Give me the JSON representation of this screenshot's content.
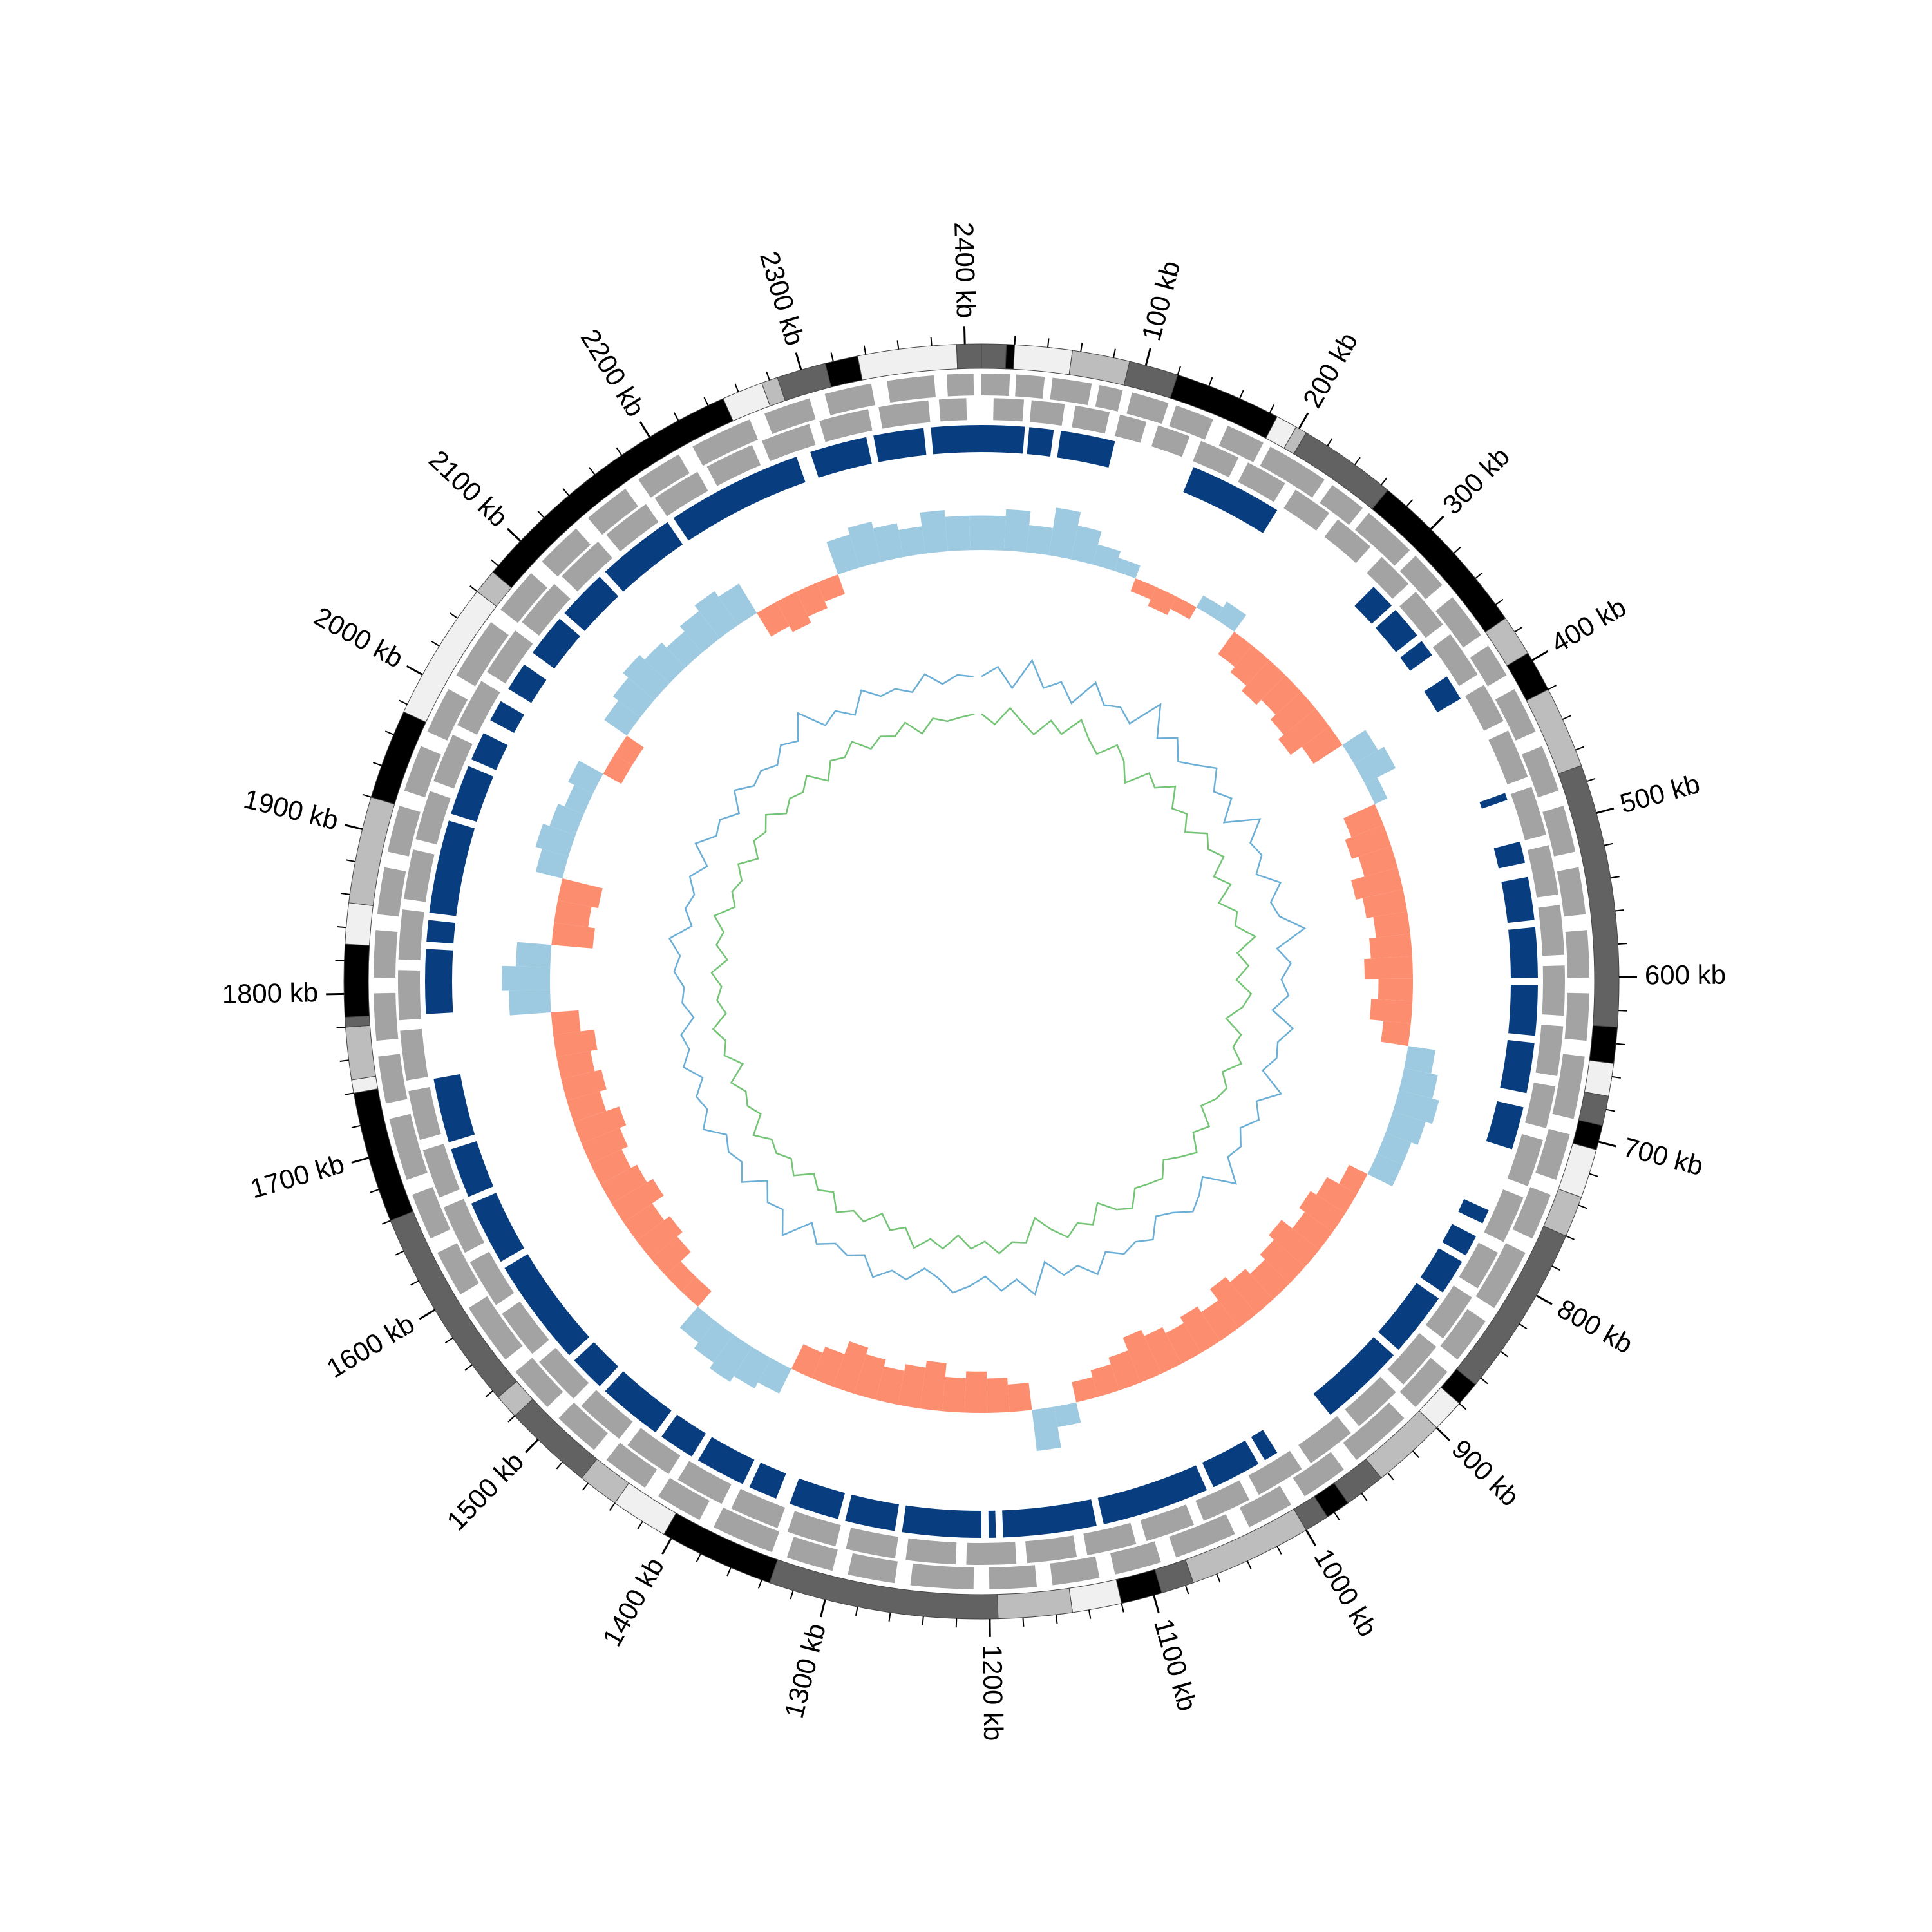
{
  "chart_data": {
    "type": "circos",
    "xlim": [
      0,
      2410
    ],
    "xticks": [
      {
        "value": 100,
        "label": "100 kb"
      },
      {
        "value": 200,
        "label": "200 kb"
      },
      {
        "value": 300,
        "label": "300 kb"
      },
      {
        "value": 400,
        "label": "400 kb"
      },
      {
        "value": 500,
        "label": "500 kb"
      },
      {
        "value": 600,
        "label": "600 kb"
      },
      {
        "value": 700,
        "label": "700 kb"
      },
      {
        "value": 800,
        "label": "800 kb"
      },
      {
        "value": 900,
        "label": "900 kb"
      },
      {
        "value": 1000,
        "label": "1000 kb"
      },
      {
        "value": 1100,
        "label": "1100 kb"
      },
      {
        "value": 1200,
        "label": "1200 kb"
      },
      {
        "value": 1300,
        "label": "1300 kb"
      },
      {
        "value": 1400,
        "label": "1400 kb"
      },
      {
        "value": 1500,
        "label": "1500 kb"
      },
      {
        "value": 1600,
        "label": "1600 kb"
      },
      {
        "value": 1700,
        "label": "1700 kb"
      },
      {
        "value": 1800,
        "label": "1800 kb"
      },
      {
        "value": 1900,
        "label": "1900 kb"
      },
      {
        "value": 2000,
        "label": "2000 kb"
      },
      {
        "value": 2100,
        "label": "2100 kb"
      },
      {
        "value": 2200,
        "label": "2200 kb"
      },
      {
        "value": 2300,
        "label": "2300 kb"
      },
      {
        "value": 2400,
        "label": "2400 kb"
      }
    ],
    "xticks_minor": [
      20,
      40,
      60,
      80,
      120,
      140,
      160,
      180,
      220,
      240,
      260,
      280,
      320,
      340,
      360,
      380,
      420,
      440,
      460,
      480,
      520,
      540,
      560,
      580,
      620,
      640,
      660,
      680,
      720,
      740,
      760,
      780,
      820,
      840,
      860,
      880,
      920,
      940,
      960,
      980,
      1020,
      1040,
      1060,
      1080,
      1120,
      1140,
      1160,
      1180,
      1220,
      1240,
      1260,
      1280,
      1320,
      1340,
      1360,
      1380,
      1420,
      1440,
      1460,
      1480,
      1520,
      1540,
      1560,
      1580,
      1620,
      1640,
      1660,
      1680,
      1720,
      1740,
      1760,
      1780,
      1820,
      1840,
      1860,
      1880,
      1920,
      1940,
      1960,
      1980,
      2020,
      2040,
      2060,
      2080,
      2120,
      2140,
      2160,
      2180,
      2220,
      2240,
      2260,
      2280,
      2320,
      2340,
      2360,
      2380
    ],
    "ideogram": {
      "bounds": [
        0,
        15,
        20,
        55,
        90,
        120,
        185,
        198,
        205,
        265,
        370,
        395,
        420,
        470,
        630,
        652,
        672,
        690,
        705,
        735,
        760,
        865,
        880,
        900,
        945,
        970,
        985,
        1000,
        1075,
        1095,
        1120,
        1150,
        1195,
        1335,
        1405,
        1440,
        1465,
        1520,
        1535,
        1660,
        1740,
        1748,
        1780,
        1786,
        1830,
        1855,
        1920,
        1975,
        2060,
        2075,
        2250,
        2275,
        2285,
        2315,
        2335,
        2395,
        2410
      ],
      "colors": [
        "#626262",
        "#000000",
        "#f0f0f0",
        "#bdbdbd",
        "#626262",
        "#000000",
        "#f0f0f0",
        "#bdbdbd",
        "#626262",
        "#000000",
        "#bdbdbd",
        "#000000",
        "#bdbdbd",
        "#626262",
        "#000000",
        "#f0f0f0",
        "#626262",
        "#000000",
        "#f0f0f0",
        "#bdbdbd",
        "#626262",
        "#000000",
        "#f0f0f0",
        "#bdbdbd",
        "#626262",
        "#000000",
        "#626262",
        "#bdbdbd",
        "#626262",
        "#000000",
        "#f0f0f0",
        "#bdbdbd",
        "#626262",
        "#000000",
        "#f0f0f0",
        "#bdbdbd",
        "#626262",
        "#bdbdbd",
        "#626262",
        "#000000",
        "#f0f0f0",
        "#bdbdbd",
        "#626262",
        "#000000",
        "#f0f0f0",
        "#bdbdbd",
        "#000000",
        "#f0f0f0",
        "#bdbdbd",
        "#000000",
        "#f0f0f0",
        "#bdbdbd",
        "#626262",
        "#000000",
        "#f0f0f0",
        "#626262"
      ]
    },
    "genes_plus": {
      "color": "#a3a3a3",
      "starts": [
        0,
        22,
        45,
        75,
        96,
        125,
        160,
        190,
        236,
        265,
        305,
        340,
        378,
        410,
        450,
        490,
        530,
        570,
        610,
        650,
        700,
        740,
        780,
        830,
        870,
        910,
        960,
        1000,
        1040,
        1090,
        1130,
        1170,
        1210,
        1260,
        1300,
        1340,
        1390,
        1430,
        1470,
        1510,
        1550,
        1600,
        1640,
        1680,
        1730,
        1770,
        1810,
        1850,
        1890,
        1930,
        1970,
        2010,
        2060,
        2100,
        2140,
        2180,
        2220,
        2270,
        2310,
        2350,
        2388
      ],
      "ends": [
        18,
        40,
        70,
        90,
        120,
        150,
        185,
        230,
        260,
        300,
        330,
        370,
        400,
        440,
        480,
        520,
        560,
        600,
        640,
        690,
        730,
        770,
        820,
        860,
        900,
        950,
        990,
        1030,
        1080,
        1120,
        1160,
        1200,
        1250,
        1290,
        1330,
        1380,
        1420,
        1460,
        1500,
        1540,
        1590,
        1630,
        1670,
        1720,
        1760,
        1800,
        1840,
        1880,
        1920,
        1960,
        2000,
        2050,
        2090,
        2130,
        2170,
        2210,
        2260,
        2300,
        2340,
        2380,
        2405
      ]
    },
    "genes_minus": {
      "color": "#a3a3a3",
      "starts": [
        8,
        33,
        62,
        92,
        118,
        148,
        182,
        218,
        252,
        290,
        322,
        358,
        398,
        432,
        472,
        512,
        552,
        592,
        632,
        672,
        708,
        748,
        788,
        822,
        862,
        902,
        942,
        982,
        1022,
        1062,
        1102,
        1142,
        1182,
        1222,
        1262,
        1302,
        1342,
        1382,
        1422,
        1462,
        1502,
        1542,
        1582,
        1622,
        1662,
        1702,
        1742,
        1782,
        1822,
        1862,
        1902,
        1942,
        1982,
        2022,
        2062,
        2102,
        2142,
        2182,
        2222,
        2262,
        2302,
        2342,
        2382
      ],
      "ends": [
        28,
        55,
        85,
        110,
        140,
        175,
        210,
        245,
        280,
        315,
        350,
        390,
        425,
        465,
        505,
        545,
        585,
        625,
        665,
        700,
        740,
        780,
        815,
        855,
        895,
        935,
        975,
        1015,
        1055,
        1095,
        1135,
        1175,
        1215,
        1255,
        1295,
        1335,
        1375,
        1415,
        1455,
        1495,
        1535,
        1575,
        1615,
        1655,
        1695,
        1735,
        1775,
        1815,
        1855,
        1895,
        1935,
        1975,
        2015,
        2055,
        2095,
        2135,
        2175,
        2215,
        2255,
        2295,
        2335,
        2375,
        2400
      ]
    },
    "blocks": {
      "color": "#083d7f",
      "starts": [
        0,
        33,
        55,
        150,
        300,
        322,
        350,
        380,
        470,
        505,
        530,
        565,
        605,
        645,
        690,
        765,
        785,
        805,
        835,
        885,
        990,
        1005,
        1045,
        1125,
        1195,
        1205,
        1265,
        1305,
        1350,
        1375,
        1415,
        1445,
        1495,
        1525,
        1605,
        1655,
        1695,
        1785,
        1835,
        1855,
        1925,
        1965,
        1995,
        2020,
        2050,
        2085,
        2125,
        2185,
        2290,
        2335,
        2375
      ],
      "ends": [
        30,
        50,
        93,
        215,
        318,
        345,
        362,
        398,
        475,
        520,
        560,
        600,
        640,
        680,
        720,
        775,
        800,
        830,
        880,
        945,
        1000,
        1040,
        1120,
        1190,
        1200,
        1260,
        1300,
        1340,
        1370,
        1410,
        1440,
        1490,
        1520,
        1600,
        1650,
        1690,
        1740,
        1830,
        1850,
        1920,
        1960,
        1985,
        2010,
        2040,
        2080,
        2120,
        2180,
        2280,
        2330,
        2370,
        2410
      ]
    },
    "skew": {
      "ylim": [
        -0.1,
        0.1
      ],
      "pos_color": "#9ecae1",
      "neg_color": "#fc8d6e",
      "x": [
        0,
        20,
        40,
        60,
        80,
        100,
        120,
        140,
        160,
        180,
        200,
        220,
        240,
        260,
        280,
        300,
        320,
        340,
        360,
        380,
        400,
        420,
        440,
        460,
        480,
        500,
        520,
        540,
        560,
        580,
        600,
        620,
        640,
        660,
        680,
        700,
        720,
        740,
        760,
        780,
        800,
        820,
        840,
        860,
        880,
        900,
        920,
        940,
        960,
        980,
        1000,
        1020,
        1040,
        1060,
        1080,
        1100,
        1120,
        1140,
        1160,
        1180,
        1200,
        1220,
        1240,
        1260,
        1280,
        1300,
        1320,
        1340,
        1360,
        1380,
        1400,
        1420,
        1440,
        1460,
        1480,
        1500,
        1520,
        1540,
        1560,
        1580,
        1600,
        1620,
        1640,
        1660,
        1680,
        1700,
        1720,
        1740,
        1760,
        1780,
        1800,
        1820,
        1840,
        1860,
        1880,
        1900,
        1920,
        1940,
        1960,
        1980,
        2000,
        2020,
        2040,
        2060,
        2080,
        2100,
        2120,
        2140,
        2160,
        2180,
        2200,
        2220,
        2240,
        2260,
        2280,
        2300,
        2320,
        2340,
        2360,
        2380,
        2400
      ],
      "values": [
        0.05,
        0.06,
        0.04,
        0.07,
        0.05,
        0.03,
        0.02,
        -0.02,
        -0.03,
        -0.02,
        0.02,
        0.03,
        -0.04,
        -0.05,
        -0.06,
        -0.05,
        -0.06,
        -0.07,
        -0.05,
        0.04,
        0.05,
        0.02,
        -0.05,
        -0.06,
        -0.05,
        -0.07,
        -0.06,
        -0.05,
        -0.06,
        -0.07,
        -0.05,
        -0.06,
        -0.04,
        0.04,
        0.05,
        0.06,
        0.05,
        0.04,
        0.04,
        -0.03,
        -0.05,
        -0.06,
        -0.05,
        -0.07,
        -0.06,
        -0.05,
        -0.06,
        -0.07,
        -0.05,
        -0.06,
        -0.05,
        -0.06,
        -0.07,
        -0.05,
        -0.04,
        -0.03,
        0.03,
        0.06,
        -0.04,
        -0.05,
        -0.06,
        -0.05,
        -0.07,
        -0.06,
        -0.05,
        -0.06,
        -0.07,
        -0.05,
        -0.04,
        0.04,
        0.05,
        0.06,
        0.05,
        0.04,
        -0.03,
        -0.03,
        -0.05,
        -0.06,
        -0.05,
        -0.07,
        -0.06,
        -0.05,
        -0.06,
        -0.07,
        -0.05,
        -0.06,
        -0.05,
        -0.06,
        -0.04,
        0.06,
        0.07,
        0.05,
        -0.06,
        -0.05,
        -0.06,
        0.04,
        0.05,
        0.04,
        0.03,
        0.04,
        -0.03,
        -0.03,
        0.04,
        0.05,
        0.06,
        0.05,
        0.04,
        0.05,
        0.06,
        0.05,
        -0.04,
        -0.05,
        -0.04,
        -0.03,
        0.05,
        0.06,
        0.05,
        0.04,
        0.06,
        0.05,
        0.05
      ]
    },
    "inner": {
      "ylim": [
        0,
        1
      ],
      "series": [
        {
          "color": "#6baed6",
          "values": [
            0.62,
            0.66,
            0.58,
            0.7,
            0.6,
            0.64,
            0.57,
            0.68,
            0.61,
            0.63,
            0.59,
            0.72,
            0.6,
            0.65,
            0.58,
            0.62,
            0.67,
            0.6,
            0.64,
            0.56,
            0.69,
            0.61,
            0.63,
            0.58,
            0.66,
            0.6,
            0.62,
            0.71,
            0.59,
            0.64,
            0.6,
            0.63,
            0.57,
            0.66,
            0.61,
            0.62,
            0.58,
            0.68,
            0.6,
            0.64,
            0.59,
            0.63,
            0.61,
            0.7,
            0.58,
            0.62,
            0.65,
            0.6,
            0.57,
            0.64,
            0.61,
            0.63,
            0.59,
            0.66,
            0.6,
            0.62,
            0.55,
            0.67,
            0.6,
            0.64,
            0.58,
            0.62,
            0.65,
            0.6,
            0.57,
            0.63,
            0.61,
            0.66,
            0.59,
            0.62,
            0.6,
            0.64,
            0.58,
            0.69,
            0.61,
            0.63,
            0.57,
            0.65,
            0.6,
            0.62,
            0.59,
            0.66,
            0.61,
            0.63,
            0.58,
            0.64,
            0.6,
            0.62,
            0.56,
            0.6,
            0.59,
            0.63,
            0.61,
            0.66,
            0.58,
            0.62,
            0.6,
            0.64,
            0.59,
            0.67,
            0.61,
            0.63,
            0.58,
            0.65,
            0.6,
            0.62,
            0.59,
            0.64,
            0.61,
            0.7,
            0.6,
            0.63,
            0.58,
            0.66,
            0.61,
            0.62,
            0.59,
            0.65,
            0.6,
            0.63,
            0.62
          ]
        },
        {
          "color": "#74c476",
          "values": [
            0.47,
            0.43,
            0.5,
            0.45,
            0.41,
            0.48,
            0.44,
            0.52,
            0.46,
            0.42,
            0.49,
            0.45,
            0.38,
            0.47,
            0.44,
            0.5,
            0.43,
            0.46,
            0.41,
            0.48,
            0.45,
            0.49,
            0.42,
            0.47,
            0.4,
            0.46,
            0.44,
            0.51,
            0.43,
            0.47,
            0.42,
            0.48,
            0.45,
            0.39,
            0.46,
            0.44,
            0.49,
            0.43,
            0.47,
            0.45,
            0.41,
            0.48,
            0.44,
            0.5,
            0.46,
            0.42,
            0.47,
            0.45,
            0.43,
            0.49,
            0.46,
            0.4,
            0.47,
            0.44,
            0.48,
            0.43,
            0.37,
            0.46,
            0.45,
            0.49,
            0.44,
            0.47,
            0.42,
            0.48,
            0.45,
            0.5,
            0.43,
            0.46,
            0.41,
            0.47,
            0.45,
            0.49,
            0.43,
            0.46,
            0.42,
            0.48,
            0.44,
            0.47,
            0.45,
            0.5,
            0.43,
            0.46,
            0.44,
            0.48,
            0.41,
            0.47,
            0.45,
            0.49,
            0.43,
            0.46,
            0.44,
            0.48,
            0.42,
            0.47,
            0.45,
            0.5,
            0.43,
            0.46,
            0.44,
            0.48,
            0.42,
            0.47,
            0.45,
            0.49,
            0.43,
            0.46,
            0.44,
            0.48,
            0.41,
            0.47,
            0.45,
            0.49,
            0.43,
            0.46,
            0.44,
            0.48,
            0.42,
            0.47,
            0.45,
            0.46,
            0.47
          ]
        }
      ]
    }
  }
}
